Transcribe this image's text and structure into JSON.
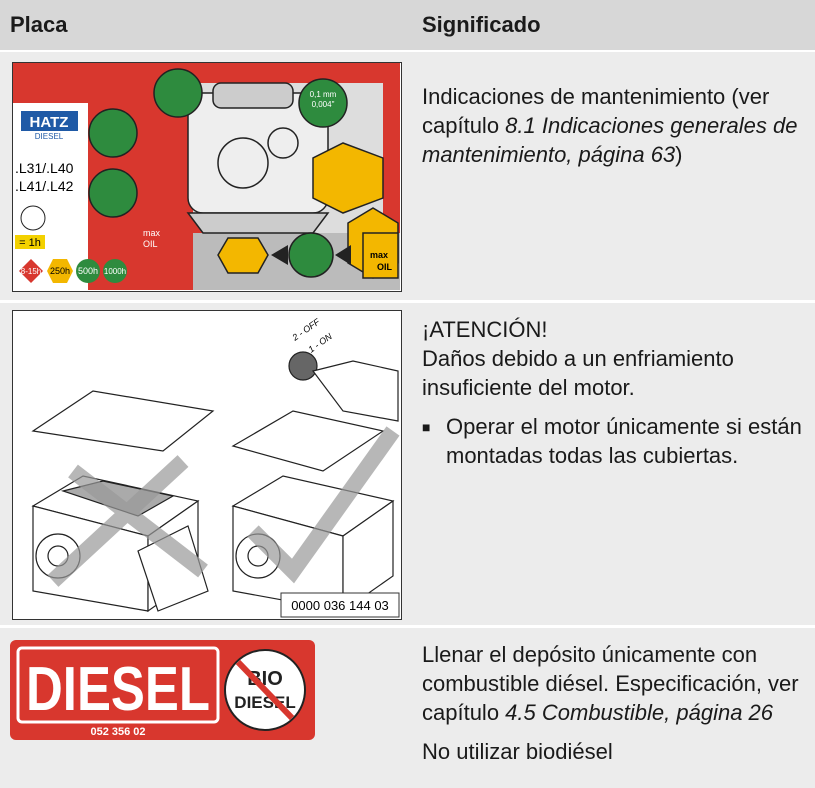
{
  "table": {
    "header": [
      "Placa",
      "Significado"
    ],
    "rows": [
      {
        "plate": {
          "brand": "HATZ",
          "brand_sub": "DIESEL",
          "models": [
            ".L31/.L40",
            ".L41/.L42"
          ],
          "interval": "= 1h",
          "gap": "0,1 mm",
          "gap_in": "0,004\"",
          "oil": [
            "max",
            "OIL"
          ],
          "hours": [
            "8-15h",
            "250h",
            "500h",
            "1000h"
          ]
        },
        "meaning": {
          "text": "Indicaciones de mantenimiento (ver capítulo ",
          "ref": "8.1 Indicaciones generales de mantenimiento, página 63",
          "end": ")"
        }
      },
      {
        "plate": {
          "key": [
            "2 - OFF",
            "1 - ON"
          ],
          "code": "0000 036 144 03"
        },
        "meaning": {
          "heading": "¡ATENCIÓN!",
          "text": "Daños debido a un enfriamiento insuficiente del motor.",
          "bullet": "Operar el motor únicamente si están montadas todas las cubiertas."
        }
      },
      {
        "plate": {
          "label": "DIESEL",
          "code": "052 356 02",
          "crossed": [
            "BIO",
            "DIESEL"
          ]
        },
        "meaning": {
          "text": "Llenar el depósito únicamente con combustible diésel. Especificación, ver capítulo ",
          "ref": "4.5 Combustible, página 26",
          "note": "No utilizar biodiésel"
        }
      }
    ]
  }
}
